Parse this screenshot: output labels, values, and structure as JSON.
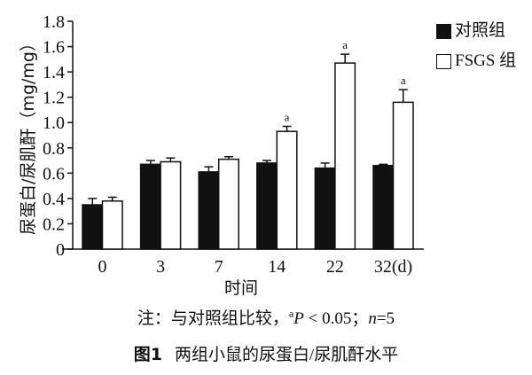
{
  "chart_data": {
    "type": "bar",
    "title": "两组小鼠的尿蛋白/尿肌酐水平",
    "xlabel": "时间",
    "ylabel": "尿蛋白/尿肌酐（mg/mg）",
    "categories": [
      "0",
      "3",
      "7",
      "14",
      "22",
      "32(d)"
    ],
    "ylim": [
      0,
      1.8
    ],
    "yticks": [
      "0",
      "0.2",
      "0.4",
      "0.6",
      "0.8",
      "1.0",
      "1.2",
      "1.4",
      "1.6",
      "1.8"
    ],
    "grid": false,
    "legend_position": "top-right",
    "series": [
      {
        "name": "对照组",
        "color": "#111111",
        "fill": "black",
        "values": [
          0.35,
          0.67,
          0.61,
          0.68,
          0.64,
          0.66
        ],
        "errors": [
          0.05,
          0.03,
          0.04,
          0.02,
          0.04,
          0.01
        ],
        "annotations": [
          "",
          "",
          "",
          "",
          "",
          ""
        ]
      },
      {
        "name": "FSGS 组",
        "color": "#ffffff",
        "fill": "white",
        "values": [
          0.38,
          0.69,
          0.71,
          0.93,
          1.47,
          1.16
        ],
        "errors": [
          0.03,
          0.03,
          0.02,
          0.04,
          0.07,
          0.1
        ],
        "annotations": [
          "",
          "",
          "",
          "a",
          "a",
          "a"
        ]
      }
    ]
  },
  "legend": {
    "control_label": "对照组",
    "fsgs_label": "FSGS 组"
  },
  "note": {
    "prefix": "注：与对照组比较，",
    "sup": "a",
    "p": "P",
    "rest": " < 0.05；",
    "n": "n",
    "n_rest": "=5"
  },
  "caption": {
    "fig_label": "图1",
    "text": "两组小鼠的尿蛋白/尿肌酐水平"
  }
}
